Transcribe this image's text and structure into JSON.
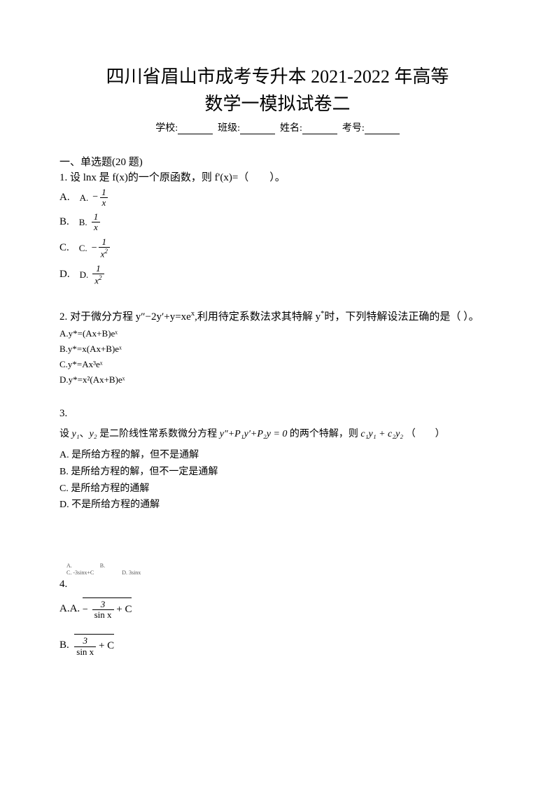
{
  "title_line1": "四川省眉山市成考专升本 2021-2022 年高等",
  "title_line2": "数学一模拟试卷二",
  "info": {
    "school_label": "学校:",
    "class_label": "班级:",
    "name_label": "姓名:",
    "exam_no_label": "考号:"
  },
  "section1": {
    "heading": "一、单选题(20 题)",
    "q1": {
      "text": "1. 设 lnx 是 f(x)的一个原函数，则 f'(x)=（　　）。",
      "options": {
        "A": {
          "outer": "A.",
          "inner": "A.",
          "sign": "−",
          "num": "1",
          "den": "x"
        },
        "B": {
          "outer": "B.",
          "inner": "B.",
          "sign": "",
          "num": "1",
          "den": "x"
        },
        "C": {
          "outer": "C.",
          "inner": "C.",
          "sign": "−",
          "num": "1",
          "den": "x",
          "den_sup": "2"
        },
        "D": {
          "outer": "D.",
          "inner": "D.",
          "sign": "",
          "num": "1",
          "den": "x",
          "den_sup": "2"
        }
      }
    },
    "q2": {
      "text_a": "2. 对于微分方程 y″−2y′+y=xe",
      "text_sup": "x",
      "text_b": ",利用待定系数法求其特解 y",
      "text_sup2": "*",
      "text_c": "时，下列特解设法正确的是（ ）。",
      "optA": "A.y*=(Ax+B)eˣ",
      "optB": "B.y*=x(Ax+B)eˣ",
      "optC": "C.y*=Ax³eˣ",
      "optD": "D.y*=x²(Ax+B)eˣ"
    },
    "q3": {
      "number": "3.",
      "text_a": "设 ",
      "y1": "y₁",
      "sep": "、",
      "y2": "y₂",
      "text_b": " 是二阶线性常系数微分方程 ",
      "eq": "y″+P₁y′+P₂y = 0",
      "text_c": " 的两个特解，则 ",
      "comb": "c₁y₁ + c₂y₂",
      "paren": "（　　）",
      "optA": "A. 是所给方程的解，但不是通解",
      "optB": "B. 是所给方程的解，但不一定是通解",
      "optC": "C. 是所给方程的通解",
      "optD": "D. 不是所给方程的通解"
    },
    "q4": {
      "number": "4.",
      "tinyA": "A.",
      "tinyB": "B.",
      "tinyC": "C. -3sinx+C",
      "tinyD": "D. 3sinx",
      "optAA_label": "A.A.",
      "optAA_num_sign": "−",
      "optAA_num": "3",
      "optAA_den": "sin x",
      "optAA_tail": "+ C",
      "optB_label": "B.",
      "optB_num": "3",
      "optB_den": "sin x",
      "optB_tail": "+ C"
    }
  }
}
